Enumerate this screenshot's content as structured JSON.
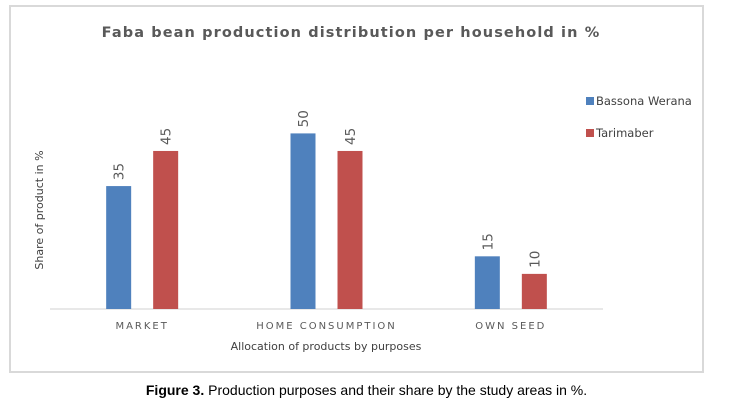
{
  "chart_data": {
    "type": "bar",
    "title": "Faba bean production distribution per household in %",
    "xlabel": "Allocation of products by purposes",
    "ylabel": "Share of product in %",
    "categories": [
      "MARKET",
      "HOME CONSUMPTION",
      "OWN SEED"
    ],
    "series": [
      {
        "name": "Bassona Werana",
        "color": "#4f81bd",
        "values": [
          35,
          50,
          15
        ]
      },
      {
        "name": "Tarimaber",
        "color": "#c0504d",
        "values": [
          45,
          45,
          10
        ]
      }
    ],
    "ylim": [
      0,
      50
    ],
    "grid": false,
    "legend": "right",
    "data_labels": true
  },
  "caption": {
    "label": "Figure 3.",
    "text": " Production purposes and their share by the study areas in %."
  }
}
